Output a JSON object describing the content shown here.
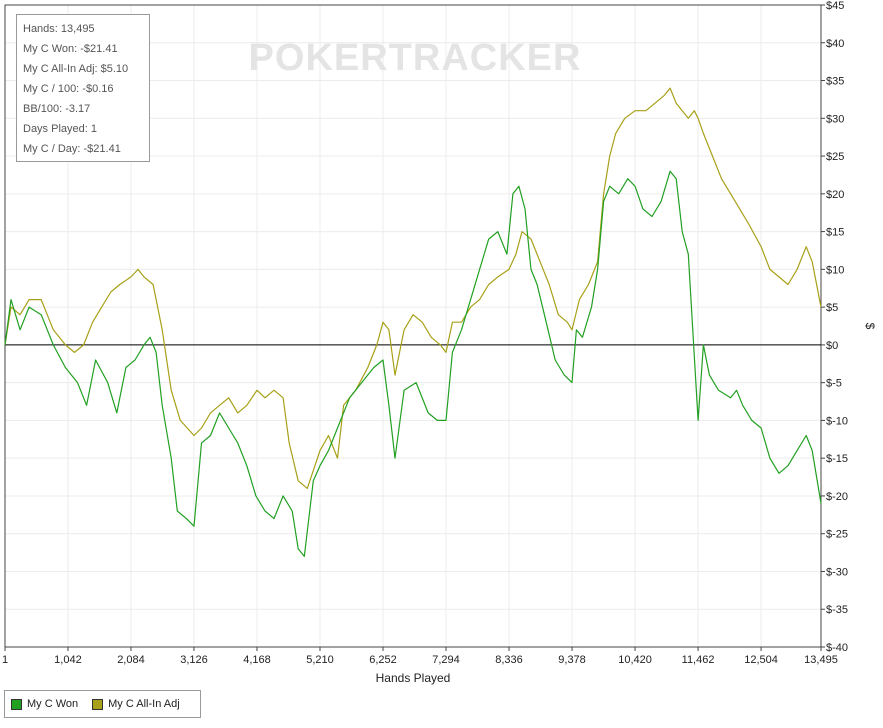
{
  "chart_data": {
    "type": "line",
    "watermark": "POKERTRACKER",
    "xlabel": "Hands Played",
    "ylabel": "$",
    "xlim": [
      1,
      13495
    ],
    "ylim": [
      -40,
      45
    ],
    "x_ticks": [
      "1",
      "1,042",
      "2,084",
      "3,126",
      "4,168",
      "5,210",
      "6,252",
      "7,294",
      "8,336",
      "9,378",
      "10,420",
      "11,462",
      "12,504",
      "13,495"
    ],
    "x_tick_values": [
      1,
      1042,
      2084,
      3126,
      4168,
      5210,
      6252,
      7294,
      8336,
      9378,
      10420,
      11462,
      12504,
      13495
    ],
    "y_ticks": [
      "$45",
      "$40",
      "$35",
      "$30",
      "$25",
      "$20",
      "$15",
      "$10",
      "$5",
      "$0",
      "$-5",
      "$-10",
      "$-15",
      "$-20",
      "$-25",
      "$-30",
      "$-35",
      "$-40"
    ],
    "y_tick_values": [
      45,
      40,
      35,
      30,
      25,
      20,
      15,
      10,
      5,
      0,
      -5,
      -10,
      -15,
      -20,
      -25,
      -30,
      -35,
      -40
    ],
    "grid": true,
    "legend_position": "bottom-left",
    "series": [
      {
        "name": "My C Won",
        "color": "#22a022",
        "points": [
          [
            1,
            0
          ],
          [
            100,
            6
          ],
          [
            250,
            2
          ],
          [
            400,
            5
          ],
          [
            600,
            4
          ],
          [
            800,
            0
          ],
          [
            1000,
            -3
          ],
          [
            1200,
            -5
          ],
          [
            1350,
            -8
          ],
          [
            1500,
            -2
          ],
          [
            1700,
            -5
          ],
          [
            1850,
            -9
          ],
          [
            2000,
            -3
          ],
          [
            2150,
            -2
          ],
          [
            2300,
            0
          ],
          [
            2400,
            1
          ],
          [
            2500,
            -1
          ],
          [
            2600,
            -8
          ],
          [
            2750,
            -15
          ],
          [
            2850,
            -22
          ],
          [
            3000,
            -23
          ],
          [
            3126,
            -24
          ],
          [
            3250,
            -13
          ],
          [
            3400,
            -12
          ],
          [
            3550,
            -9
          ],
          [
            3700,
            -11
          ],
          [
            3850,
            -13
          ],
          [
            4000,
            -16
          ],
          [
            4150,
            -20
          ],
          [
            4300,
            -22
          ],
          [
            4450,
            -23
          ],
          [
            4600,
            -20
          ],
          [
            4750,
            -22
          ],
          [
            4850,
            -27
          ],
          [
            4950,
            -28
          ],
          [
            5100,
            -18
          ],
          [
            5210,
            -16
          ],
          [
            5350,
            -14
          ],
          [
            5500,
            -11
          ],
          [
            5700,
            -7
          ],
          [
            5900,
            -5
          ],
          [
            6100,
            -3
          ],
          [
            6252,
            -2
          ],
          [
            6350,
            -8
          ],
          [
            6450,
            -15
          ],
          [
            6600,
            -6
          ],
          [
            6800,
            -5
          ],
          [
            7000,
            -9
          ],
          [
            7150,
            -10
          ],
          [
            7294,
            -10
          ],
          [
            7400,
            -1
          ],
          [
            7550,
            2
          ],
          [
            7700,
            6
          ],
          [
            7850,
            10
          ],
          [
            8000,
            14
          ],
          [
            8150,
            15
          ],
          [
            8300,
            12
          ],
          [
            8400,
            20
          ],
          [
            8500,
            21
          ],
          [
            8600,
            18
          ],
          [
            8700,
            10
          ],
          [
            8800,
            8
          ],
          [
            8950,
            3
          ],
          [
            9100,
            -2
          ],
          [
            9250,
            -4
          ],
          [
            9378,
            -5
          ],
          [
            9450,
            2
          ],
          [
            9550,
            1
          ],
          [
            9700,
            5
          ],
          [
            9800,
            10
          ],
          [
            9900,
            19
          ],
          [
            10000,
            21
          ],
          [
            10150,
            20
          ],
          [
            10300,
            22
          ],
          [
            10420,
            21
          ],
          [
            10550,
            18
          ],
          [
            10700,
            17
          ],
          [
            10850,
            19
          ],
          [
            11000,
            23
          ],
          [
            11100,
            22
          ],
          [
            11200,
            15
          ],
          [
            11300,
            12
          ],
          [
            11462,
            -10
          ],
          [
            11550,
            0
          ],
          [
            11650,
            -4
          ],
          [
            11800,
            -6
          ],
          [
            12000,
            -7
          ],
          [
            12100,
            -6
          ],
          [
            12200,
            -8
          ],
          [
            12350,
            -10
          ],
          [
            12504,
            -11
          ],
          [
            12650,
            -15
          ],
          [
            12800,
            -17
          ],
          [
            12950,
            -16
          ],
          [
            13100,
            -14
          ],
          [
            13250,
            -12
          ],
          [
            13350,
            -14
          ],
          [
            13495,
            -21
          ]
        ]
      },
      {
        "name": "My C All-In Adj",
        "color": "#a8a018",
        "points": [
          [
            1,
            0
          ],
          [
            100,
            5
          ],
          [
            250,
            4
          ],
          [
            400,
            6
          ],
          [
            600,
            6
          ],
          [
            800,
            2
          ],
          [
            1000,
            0
          ],
          [
            1150,
            -1
          ],
          [
            1300,
            0
          ],
          [
            1450,
            3
          ],
          [
            1600,
            5
          ],
          [
            1750,
            7
          ],
          [
            1900,
            8
          ],
          [
            2084,
            9
          ],
          [
            2200,
            10
          ],
          [
            2300,
            9
          ],
          [
            2450,
            8
          ],
          [
            2600,
            2
          ],
          [
            2750,
            -6
          ],
          [
            2900,
            -10
          ],
          [
            3126,
            -12
          ],
          [
            3250,
            -11
          ],
          [
            3400,
            -9
          ],
          [
            3550,
            -8
          ],
          [
            3700,
            -7
          ],
          [
            3850,
            -9
          ],
          [
            4000,
            -8
          ],
          [
            4168,
            -6
          ],
          [
            4300,
            -7
          ],
          [
            4450,
            -6
          ],
          [
            4600,
            -7
          ],
          [
            4700,
            -13
          ],
          [
            4850,
            -18
          ],
          [
            5000,
            -19
          ],
          [
            5210,
            -14
          ],
          [
            5350,
            -12
          ],
          [
            5500,
            -15
          ],
          [
            5600,
            -8
          ],
          [
            5800,
            -6
          ],
          [
            6000,
            -3
          ],
          [
            6150,
            0
          ],
          [
            6252,
            3
          ],
          [
            6350,
            2
          ],
          [
            6450,
            -4
          ],
          [
            6600,
            2
          ],
          [
            6750,
            4
          ],
          [
            6900,
            3
          ],
          [
            7050,
            1
          ],
          [
            7200,
            0
          ],
          [
            7294,
            -1
          ],
          [
            7400,
            3
          ],
          [
            7550,
            3
          ],
          [
            7700,
            5
          ],
          [
            7850,
            6
          ],
          [
            8000,
            8
          ],
          [
            8150,
            9
          ],
          [
            8336,
            10
          ],
          [
            8450,
            12
          ],
          [
            8550,
            15
          ],
          [
            8700,
            14
          ],
          [
            8850,
            11
          ],
          [
            9000,
            8
          ],
          [
            9150,
            4
          ],
          [
            9300,
            3
          ],
          [
            9378,
            2
          ],
          [
            9500,
            6
          ],
          [
            9650,
            8
          ],
          [
            9800,
            11
          ],
          [
            9900,
            20
          ],
          [
            10000,
            25
          ],
          [
            10100,
            28
          ],
          [
            10250,
            30
          ],
          [
            10420,
            31
          ],
          [
            10600,
            31
          ],
          [
            10750,
            32
          ],
          [
            10900,
            33
          ],
          [
            11000,
            34
          ],
          [
            11100,
            32
          ],
          [
            11200,
            31
          ],
          [
            11300,
            30
          ],
          [
            11400,
            31
          ],
          [
            11462,
            30
          ],
          [
            11550,
            28
          ],
          [
            11700,
            25
          ],
          [
            11850,
            22
          ],
          [
            12000,
            20
          ],
          [
            12150,
            18
          ],
          [
            12300,
            16
          ],
          [
            12504,
            13
          ],
          [
            12650,
            10
          ],
          [
            12800,
            9
          ],
          [
            12950,
            8
          ],
          [
            13100,
            10
          ],
          [
            13250,
            13
          ],
          [
            13350,
            11
          ],
          [
            13495,
            5
          ]
        ]
      }
    ]
  },
  "stats_box": {
    "lines": [
      "Hands: 13,495",
      "My C Won: -$21.41",
      "My C All-In Adj: $5.10",
      "My C / 100: -$0.16",
      "BB/100: -3.17",
      "Days Played: 1",
      "My C / Day: -$21.41"
    ]
  },
  "legend": {
    "items": [
      {
        "label": "My C Won",
        "color": "#22a022"
      },
      {
        "label": "My C All-In Adj",
        "color": "#a8a018"
      }
    ]
  }
}
